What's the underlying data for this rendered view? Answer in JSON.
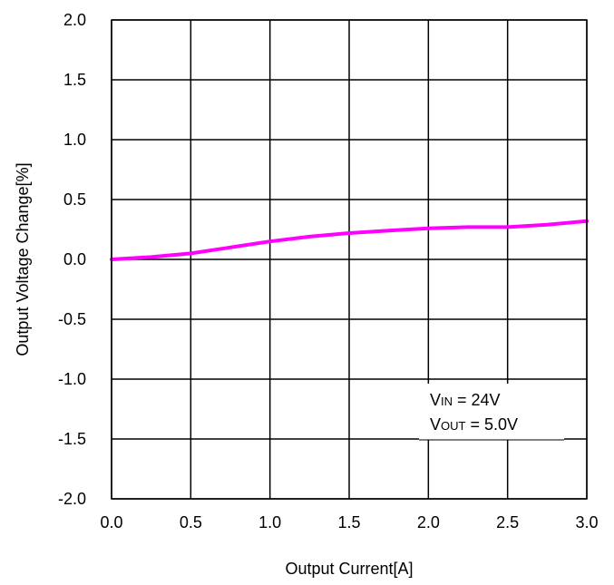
{
  "chart_data": {
    "type": "line",
    "title": "",
    "xlabel": "Output Current[A]",
    "ylabel": "Output Voltage Change[%]",
    "xlim": [
      0.0,
      3.0
    ],
    "ylim": [
      -2.0,
      2.0
    ],
    "x_ticks": [
      "0.0",
      "0.5",
      "1.0",
      "1.5",
      "2.0",
      "2.5",
      "3.0"
    ],
    "y_ticks": [
      "2.0",
      "1.5",
      "1.0",
      "0.5",
      "0.0",
      "-0.5",
      "-1.0",
      "-1.5",
      "-2.0"
    ],
    "x_tick_values": [
      0.0,
      0.5,
      1.0,
      1.5,
      2.0,
      2.5,
      3.0
    ],
    "y_tick_values": [
      2.0,
      1.5,
      1.0,
      0.5,
      0.0,
      -0.5,
      -1.0,
      -1.5,
      -2.0
    ],
    "grid": true,
    "series": [
      {
        "color": "#ff00ff",
        "x": [
          0.0,
          0.25,
          0.5,
          0.75,
          1.0,
          1.25,
          1.5,
          1.75,
          2.0,
          2.25,
          2.5,
          2.75,
          3.0
        ],
        "y": [
          0.0,
          0.02,
          0.05,
          0.1,
          0.15,
          0.19,
          0.22,
          0.24,
          0.26,
          0.27,
          0.27,
          0.29,
          0.32
        ]
      }
    ],
    "annotation": {
      "line1": {
        "main": "V",
        "sub": "IN",
        "rest": " = 24V"
      },
      "line2": {
        "main": "V",
        "sub": "OUT",
        "rest": " = 5.0V"
      }
    }
  }
}
